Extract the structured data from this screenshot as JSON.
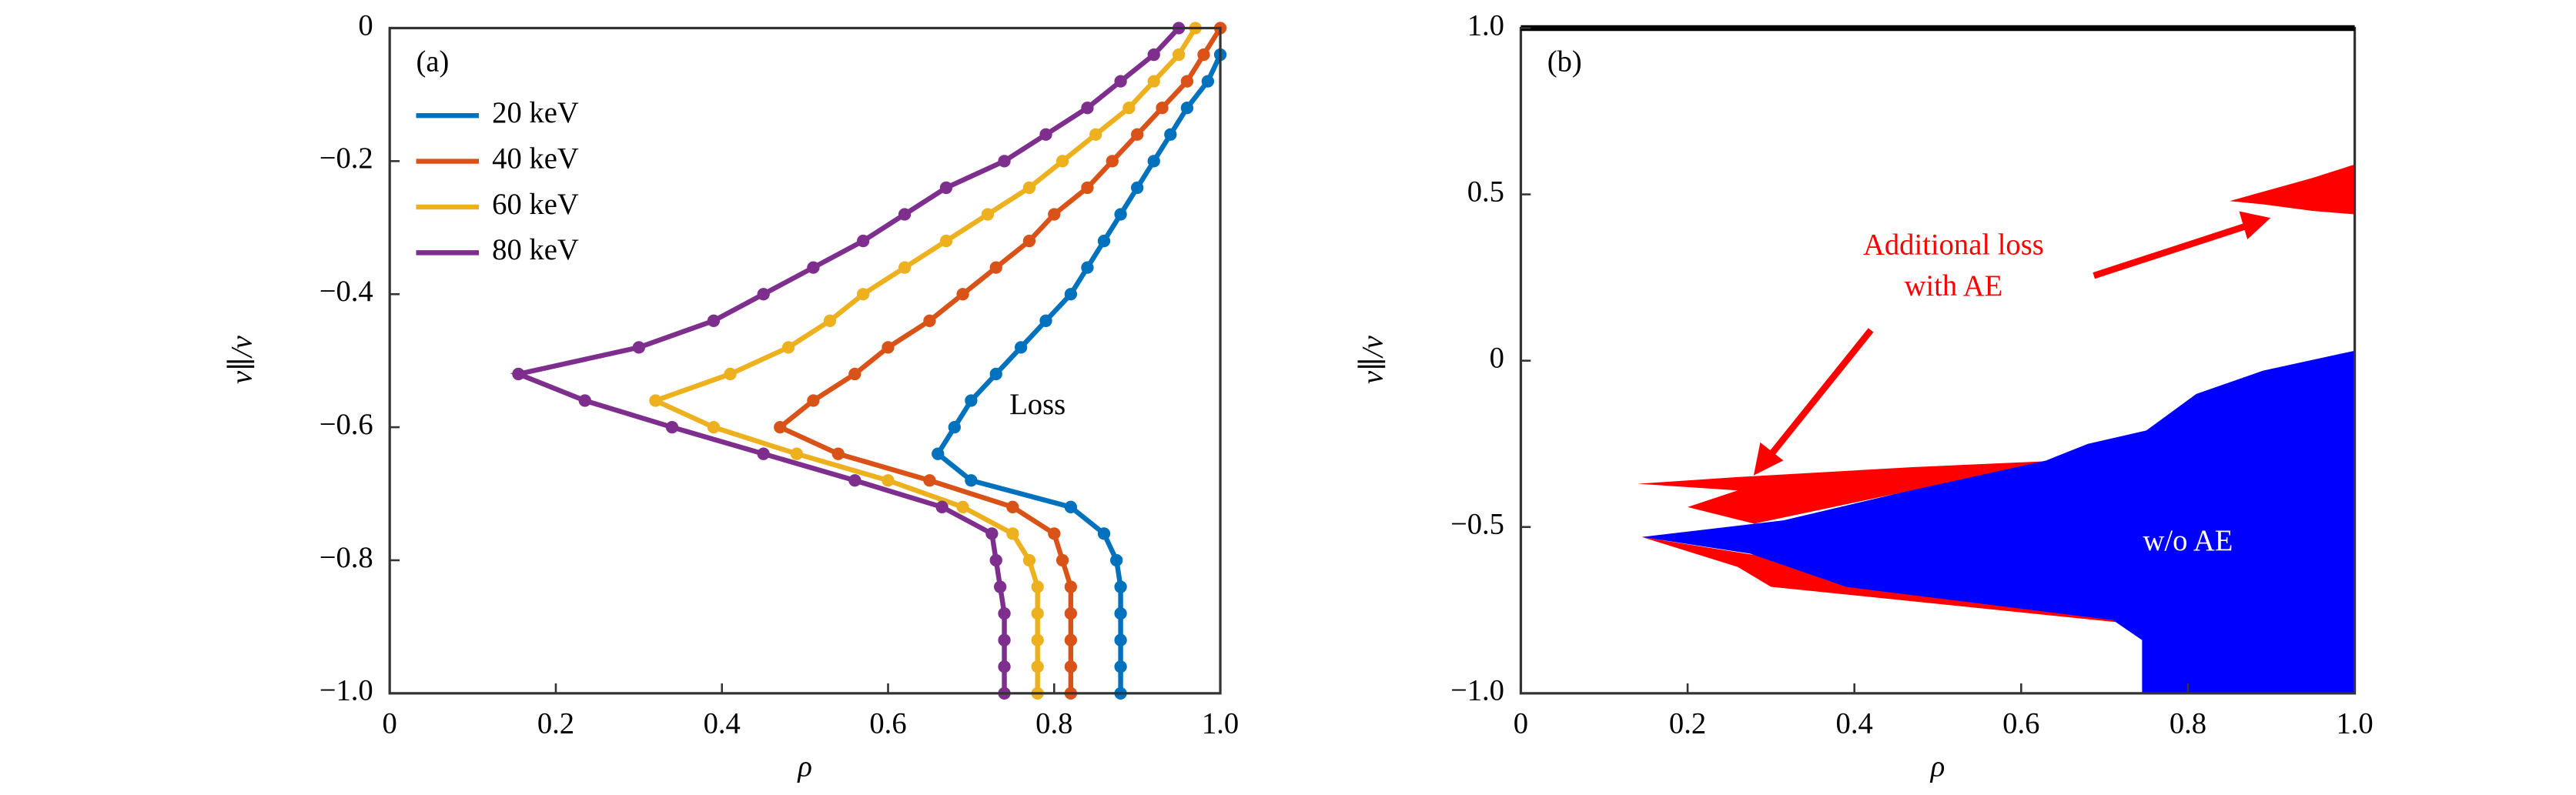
{
  "chart_data": [
    {
      "type": "line",
      "annotation": "(a)",
      "region_label": "Loss",
      "x_label": "ρ",
      "y_label": "v∥/v",
      "xlim": [
        0,
        1
      ],
      "ylim": [
        -1,
        0
      ],
      "xticks": [
        0,
        0.2,
        0.4,
        0.6,
        0.8,
        {
          "value": 1,
          "label": "1.0"
        }
      ],
      "yticks": [
        0,
        {
          "value": -0.2,
          "label": "−0.2"
        },
        {
          "value": -0.4,
          "label": "−0.4"
        },
        {
          "value": -0.6,
          "label": "−0.6"
        },
        {
          "value": -0.8,
          "label": "−0.8"
        },
        {
          "value": -1,
          "label": "−1.0"
        }
      ],
      "legend": "upper left",
      "series": [
        {
          "name": "20 keV",
          "color": "#0072bd",
          "x": [
            1.0,
            0.985,
            0.96,
            0.94,
            0.92,
            0.9,
            0.88,
            0.86,
            0.84,
            0.82,
            0.79,
            0.76,
            0.73,
            0.7,
            0.68,
            0.66,
            0.7,
            0.82,
            0.86,
            0.875,
            0.88,
            0.88,
            0.88,
            0.88,
            0.88
          ],
          "y": [
            -0.04,
            -0.08,
            -0.12,
            -0.16,
            -0.2,
            -0.24,
            -0.28,
            -0.32,
            -0.36,
            -0.4,
            -0.44,
            -0.48,
            -0.52,
            -0.56,
            -0.6,
            -0.64,
            -0.68,
            -0.72,
            -0.76,
            -0.8,
            -0.84,
            -0.88,
            -0.92,
            -0.96,
            -1
          ]
        },
        {
          "name": "40 keV",
          "color": "#d95319",
          "x": [
            1.0,
            0.98,
            0.96,
            0.93,
            0.9,
            0.87,
            0.84,
            0.8,
            0.77,
            0.73,
            0.69,
            0.65,
            0.6,
            0.56,
            0.51,
            0.47,
            0.54,
            0.65,
            0.75,
            0.8,
            0.81,
            0.82,
            0.82,
            0.82,
            0.82,
            0.82
          ],
          "y": [
            0,
            -0.04,
            -0.08,
            -0.12,
            -0.16,
            -0.2,
            -0.24,
            -0.28,
            -0.32,
            -0.36,
            -0.4,
            -0.44,
            -0.48,
            -0.52,
            -0.56,
            -0.6,
            -0.64,
            -0.68,
            -0.72,
            -0.76,
            -0.8,
            -0.84,
            -0.88,
            -0.92,
            -0.96,
            -1
          ]
        },
        {
          "name": "60 keV",
          "color": "#edb120",
          "x": [
            0.97,
            0.95,
            0.92,
            0.89,
            0.85,
            0.81,
            0.77,
            0.72,
            0.67,
            0.62,
            0.57,
            0.53,
            0.48,
            0.41,
            0.32,
            0.39,
            0.49,
            0.6,
            0.69,
            0.75,
            0.77,
            0.78,
            0.78,
            0.78,
            0.78,
            0.78
          ],
          "y": [
            0,
            -0.04,
            -0.08,
            -0.12,
            -0.16,
            -0.2,
            -0.24,
            -0.28,
            -0.32,
            -0.36,
            -0.4,
            -0.44,
            -0.48,
            -0.52,
            -0.56,
            -0.6,
            -0.64,
            -0.68,
            -0.72,
            -0.76,
            -0.8,
            -0.84,
            -0.88,
            -0.92,
            -0.96,
            -1
          ]
        },
        {
          "name": "80 keV",
          "color": "#7e2f8e",
          "x": [
            0.95,
            0.92,
            0.88,
            0.84,
            0.79,
            0.74,
            0.67,
            0.62,
            0.57,
            0.51,
            0.45,
            0.39,
            0.3,
            0.155,
            0.235,
            0.34,
            0.45,
            0.56,
            0.665,
            0.725,
            0.73,
            0.735,
            0.74,
            0.74,
            0.74,
            0.74
          ],
          "y": [
            0,
            -0.04,
            -0.08,
            -0.12,
            -0.16,
            -0.2,
            -0.24,
            -0.28,
            -0.32,
            -0.36,
            -0.4,
            -0.44,
            -0.48,
            -0.52,
            -0.56,
            -0.6,
            -0.64,
            -0.68,
            -0.72,
            -0.76,
            -0.8,
            -0.84,
            -0.88,
            -0.92,
            -0.96,
            -1
          ]
        }
      ]
    },
    {
      "type": "area",
      "annotation": "(b)",
      "region_label": "w/o AE",
      "arrow_label": [
        "Additional loss",
        "with AE"
      ],
      "x_label": "ρ",
      "y_label": "v∥/v",
      "xlim": [
        0,
        1
      ],
      "ylim": [
        -1,
        1
      ],
      "xticks": [
        0,
        0.2,
        0.4,
        0.6,
        0.8,
        {
          "value": 1,
          "label": "1.0"
        }
      ],
      "yticks": [
        {
          "value": 1,
          "label": "1.0"
        },
        0.5,
        0,
        {
          "value": -0.5,
          "label": "−0.5"
        },
        {
          "value": -1,
          "label": "−1.0"
        }
      ],
      "series": [
        {
          "color": "#ff0000",
          "x": [
            0.14,
            0.26,
            0.47,
            0.65,
            0.45,
            0.28,
            0.2,
            0.26
          ],
          "y": [
            -0.37,
            -0.35,
            -0.32,
            -0.3,
            -0.4,
            -0.49,
            -0.44,
            -0.39
          ]
        },
        {
          "color": "#ff0000",
          "x": [
            0.145,
            0.26,
            0.3,
            0.73,
            0.7,
            0.27
          ],
          "y": [
            -0.53,
            -0.62,
            -0.68,
            -0.79,
            -0.75,
            -0.58
          ]
        },
        {
          "color": "#ff0000",
          "x": [
            0.85,
            0.95,
            1.0,
            1.0,
            0.95,
            0.89
          ],
          "y": [
            0.48,
            0.55,
            0.59,
            0.44,
            0.45,
            0.47
          ]
        },
        {
          "color": "#0000ff",
          "x": [
            1.0,
            0.89,
            0.81,
            0.75,
            0.68,
            0.63,
            0.45,
            0.315,
            0.145,
            0.275,
            0.39,
            0.55,
            0.71,
            0.745,
            0.745,
            1.0
          ],
          "y": [
            0.03,
            -0.03,
            -0.1,
            -0.21,
            -0.25,
            -0.3,
            -0.4,
            -0.48,
            -0.53,
            -0.58,
            -0.68,
            -0.73,
            -0.78,
            -0.84,
            -1,
            -1
          ]
        }
      ]
    }
  ]
}
